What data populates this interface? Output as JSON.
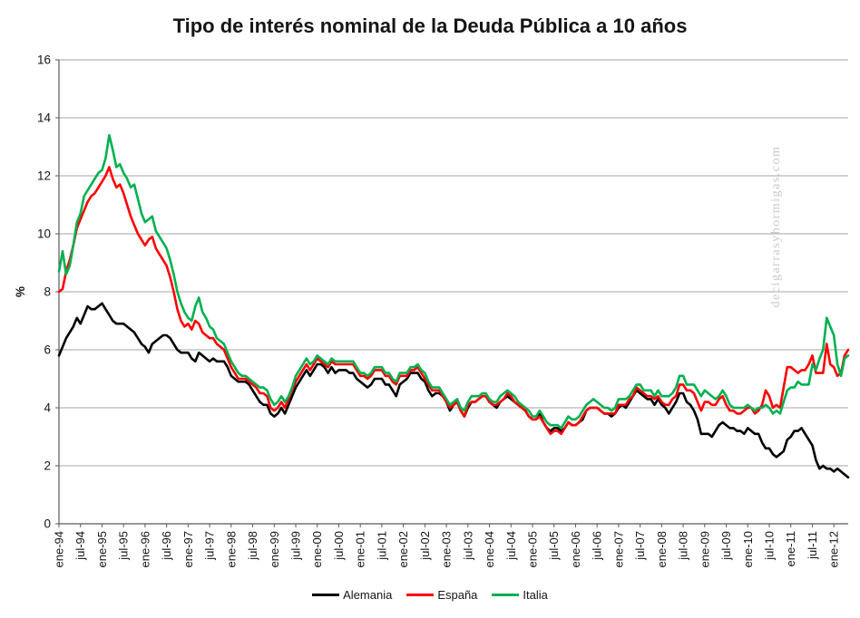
{
  "watermark": "decigarrasyhormigas.com",
  "colors": {
    "gridline": "#a6a6a6",
    "axis": "#595959",
    "text": "#151515",
    "watermark": "#c9c9c9",
    "background": "#ffffff"
  },
  "chart_data": {
    "type": "line",
    "title": "Tipo de interés nominal de la Deuda Pública a 10 años",
    "xlabel": "",
    "ylabel": "%",
    "ylim": [
      0,
      16
    ],
    "yticks": [
      0,
      2,
      4,
      6,
      8,
      10,
      12,
      14,
      16
    ],
    "grid": "horizontal",
    "legend_position": "bottom",
    "x_frequency": "monthly",
    "x_range": "ene-94 to may-12",
    "x_tick_interval_months": 6,
    "x_tick_labels": [
      "ene-94",
      "jul-94",
      "ene-95",
      "jul-95",
      "ene-96",
      "jul-96",
      "ene-97",
      "jul-97",
      "ene-98",
      "jul-98",
      "ene-99",
      "jul-99",
      "ene-00",
      "jul-00",
      "ene-01",
      "jul-01",
      "ene-02",
      "jul-02",
      "ene-03",
      "jul-03",
      "ene-04",
      "jul-04",
      "ene-05",
      "jul-05",
      "ene-06",
      "jul-06",
      "ene-07",
      "jul-07",
      "ene-08",
      "jul-08",
      "ene-09",
      "jul-09",
      "ene-10",
      "jul-10",
      "ene-11",
      "jul-11",
      "ene-12"
    ],
    "series": [
      {
        "name": "Alemania",
        "color": "#000000",
        "values": [
          5.8,
          6.1,
          6.4,
          6.6,
          6.8,
          7.1,
          6.9,
          7.2,
          7.5,
          7.4,
          7.4,
          7.5,
          7.6,
          7.4,
          7.2,
          7.0,
          6.9,
          6.9,
          6.9,
          6.8,
          6.7,
          6.6,
          6.4,
          6.2,
          6.1,
          5.9,
          6.2,
          6.3,
          6.4,
          6.5,
          6.5,
          6.4,
          6.2,
          6.0,
          5.9,
          5.9,
          5.9,
          5.7,
          5.6,
          5.9,
          5.8,
          5.7,
          5.6,
          5.7,
          5.6,
          5.6,
          5.6,
          5.4,
          5.1,
          5.0,
          4.9,
          4.9,
          4.9,
          4.8,
          4.6,
          4.4,
          4.2,
          4.1,
          4.1,
          3.8,
          3.7,
          3.8,
          4.0,
          3.8,
          4.1,
          4.4,
          4.7,
          4.9,
          5.1,
          5.3,
          5.1,
          5.3,
          5.5,
          5.5,
          5.4,
          5.2,
          5.4,
          5.2,
          5.3,
          5.3,
          5.3,
          5.2,
          5.2,
          5.0,
          4.9,
          4.8,
          4.7,
          4.8,
          5.0,
          5.0,
          5.0,
          4.8,
          4.8,
          4.6,
          4.4,
          4.8,
          4.9,
          5.0,
          5.2,
          5.2,
          5.2,
          5.0,
          4.9,
          4.6,
          4.4,
          4.5,
          4.5,
          4.4,
          4.2,
          3.9,
          4.1,
          4.2,
          3.9,
          3.7,
          4.0,
          4.2,
          4.2,
          4.3,
          4.4,
          4.4,
          4.2,
          4.1,
          4.0,
          4.2,
          4.3,
          4.4,
          4.3,
          4.2,
          4.1,
          4.0,
          3.9,
          3.7,
          3.6,
          3.6,
          3.8,
          3.5,
          3.3,
          3.2,
          3.3,
          3.3,
          3.2,
          3.3,
          3.5,
          3.4,
          3.4,
          3.5,
          3.6,
          3.9,
          4.0,
          4.0,
          4.0,
          3.9,
          3.8,
          3.8,
          3.7,
          3.8,
          4.0,
          4.1,
          4.0,
          4.2,
          4.4,
          4.6,
          4.5,
          4.4,
          4.3,
          4.3,
          4.1,
          4.3,
          4.1,
          4.0,
          3.8,
          4.0,
          4.2,
          4.5,
          4.5,
          4.2,
          4.1,
          3.9,
          3.6,
          3.1,
          3.1,
          3.1,
          3.0,
          3.2,
          3.4,
          3.5,
          3.4,
          3.3,
          3.3,
          3.2,
          3.2,
          3.1,
          3.3,
          3.2,
          3.1,
          3.1,
          2.8,
          2.6,
          2.6,
          2.4,
          2.3,
          2.4,
          2.5,
          2.9,
          3.0,
          3.2,
          3.2,
          3.3,
          3.1,
          2.9,
          2.7,
          2.2,
          1.9,
          2.0,
          1.9,
          1.9,
          1.8,
          1.9,
          1.8,
          1.7,
          1.6
        ]
      },
      {
        "name": "España",
        "color": "#ff0000",
        "values": [
          8.0,
          8.1,
          8.7,
          9.1,
          9.6,
          10.2,
          10.5,
          10.8,
          11.1,
          11.3,
          11.4,
          11.6,
          11.8,
          12.0,
          12.3,
          11.9,
          11.6,
          11.7,
          11.4,
          11.0,
          10.6,
          10.3,
          10.0,
          9.8,
          9.6,
          9.8,
          9.9,
          9.5,
          9.3,
          9.1,
          8.9,
          8.5,
          8.0,
          7.4,
          7.0,
          6.8,
          6.9,
          6.7,
          7.0,
          6.9,
          6.6,
          6.5,
          6.4,
          6.4,
          6.2,
          6.1,
          6.0,
          5.7,
          5.4,
          5.2,
          5.0,
          5.0,
          5.0,
          4.9,
          4.8,
          4.7,
          4.5,
          4.5,
          4.4,
          4.0,
          3.9,
          4.0,
          4.2,
          4.0,
          4.3,
          4.6,
          4.9,
          5.1,
          5.3,
          5.5,
          5.3,
          5.5,
          5.7,
          5.6,
          5.5,
          5.4,
          5.6,
          5.5,
          5.5,
          5.5,
          5.5,
          5.5,
          5.5,
          5.3,
          5.1,
          5.1,
          5.0,
          5.1,
          5.3,
          5.3,
          5.3,
          5.1,
          5.1,
          4.9,
          4.8,
          5.1,
          5.1,
          5.1,
          5.3,
          5.3,
          5.4,
          5.2,
          5.0,
          4.8,
          4.6,
          4.6,
          4.6,
          4.4,
          4.2,
          4.0,
          4.1,
          4.2,
          3.9,
          3.7,
          4.1,
          4.2,
          4.2,
          4.3,
          4.4,
          4.4,
          4.2,
          4.1,
          4.1,
          4.2,
          4.3,
          4.5,
          4.4,
          4.2,
          4.1,
          4.0,
          3.9,
          3.7,
          3.6,
          3.6,
          3.7,
          3.5,
          3.3,
          3.1,
          3.2,
          3.2,
          3.1,
          3.3,
          3.5,
          3.4,
          3.4,
          3.5,
          3.7,
          3.9,
          4.0,
          4.0,
          4.0,
          3.9,
          3.8,
          3.8,
          3.8,
          3.8,
          4.1,
          4.1,
          4.1,
          4.3,
          4.4,
          4.7,
          4.6,
          4.5,
          4.4,
          4.4,
          4.3,
          4.4,
          4.2,
          4.1,
          4.1,
          4.3,
          4.4,
          4.8,
          4.8,
          4.6,
          4.6,
          4.5,
          4.2,
          3.9,
          4.2,
          4.2,
          4.1,
          4.1,
          4.3,
          4.4,
          4.1,
          3.9,
          3.9,
          3.8,
          3.8,
          3.9,
          4.0,
          4.0,
          3.8,
          3.9,
          4.1,
          4.6,
          4.4,
          4.0,
          4.1,
          4.0,
          4.7,
          5.4,
          5.4,
          5.3,
          5.2,
          5.3,
          5.3,
          5.5,
          5.8,
          5.2,
          5.2,
          5.2,
          6.2,
          5.5,
          5.4,
          5.1,
          5.2,
          5.8,
          6.0
        ]
      },
      {
        "name": "Italia",
        "color": "#00b050",
        "values": [
          8.7,
          9.4,
          8.6,
          8.9,
          9.6,
          10.4,
          10.7,
          11.3,
          11.5,
          11.7,
          11.9,
          12.1,
          12.2,
          12.6,
          13.4,
          12.9,
          12.3,
          12.4,
          12.1,
          11.9,
          11.6,
          11.7,
          11.2,
          10.7,
          10.4,
          10.5,
          10.6,
          10.1,
          9.9,
          9.7,
          9.5,
          9.1,
          8.6,
          8.0,
          7.6,
          7.3,
          7.1,
          7.0,
          7.5,
          7.8,
          7.3,
          7.1,
          6.8,
          6.7,
          6.4,
          6.3,
          6.2,
          5.9,
          5.6,
          5.4,
          5.2,
          5.1,
          5.1,
          5.0,
          4.9,
          4.8,
          4.7,
          4.7,
          4.6,
          4.3,
          4.1,
          4.2,
          4.4,
          4.2,
          4.4,
          4.7,
          5.1,
          5.3,
          5.5,
          5.7,
          5.5,
          5.6,
          5.8,
          5.7,
          5.6,
          5.5,
          5.7,
          5.6,
          5.6,
          5.6,
          5.6,
          5.6,
          5.6,
          5.4,
          5.2,
          5.2,
          5.1,
          5.2,
          5.4,
          5.4,
          5.4,
          5.2,
          5.2,
          5.0,
          4.9,
          5.2,
          5.2,
          5.2,
          5.4,
          5.4,
          5.5,
          5.3,
          5.2,
          4.9,
          4.7,
          4.7,
          4.7,
          4.5,
          4.3,
          4.1,
          4.2,
          4.3,
          4.0,
          3.9,
          4.2,
          4.4,
          4.4,
          4.4,
          4.5,
          4.5,
          4.3,
          4.2,
          4.2,
          4.4,
          4.5,
          4.6,
          4.5,
          4.4,
          4.2,
          4.1,
          4.0,
          3.9,
          3.7,
          3.7,
          3.9,
          3.7,
          3.5,
          3.4,
          3.4,
          3.4,
          3.3,
          3.5,
          3.7,
          3.6,
          3.6,
          3.7,
          3.9,
          4.1,
          4.2,
          4.3,
          4.2,
          4.1,
          4.0,
          4.0,
          3.9,
          4.0,
          4.3,
          4.3,
          4.3,
          4.4,
          4.6,
          4.8,
          4.8,
          4.6,
          4.6,
          4.6,
          4.4,
          4.6,
          4.4,
          4.4,
          4.4,
          4.5,
          4.7,
          5.1,
          5.1,
          4.8,
          4.8,
          4.8,
          4.6,
          4.4,
          4.6,
          4.5,
          4.4,
          4.3,
          4.4,
          4.6,
          4.4,
          4.1,
          4.0,
          4.0,
          4.0,
          4.0,
          4.1,
          4.0,
          3.9,
          4.0,
          4.0,
          4.1,
          4.0,
          3.8,
          3.9,
          3.8,
          4.2,
          4.6,
          4.7,
          4.7,
          4.9,
          4.8,
          4.8,
          4.8,
          5.5,
          5.3,
          5.7,
          6.0,
          7.1,
          6.8,
          6.5,
          5.5,
          5.1,
          5.7,
          5.8
        ]
      }
    ]
  }
}
